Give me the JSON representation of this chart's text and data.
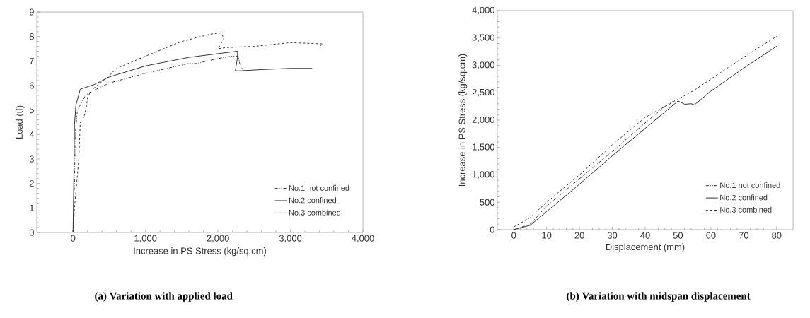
{
  "chart_data": [
    {
      "type": "line",
      "xlabel": "Increase in PS Stress (kg/sq.cm)",
      "ylabel": "Load (tf)",
      "xlim": [
        -500,
        4000
      ],
      "ylim": [
        0,
        9
      ],
      "xticks": [
        0,
        {
          "value": 1000,
          "label": "1,000"
        },
        {
          "value": 2000,
          "label": "2,000"
        },
        {
          "value": 3000,
          "label": "3,000"
        },
        {
          "value": 4000,
          "label": "4,000"
        }
      ],
      "yticks": [
        0,
        1,
        2,
        3,
        4,
        5,
        6,
        7,
        8,
        9
      ],
      "legend": "bottom right",
      "annotations": [
        "(a)  Variation with applied load"
      ],
      "series": [
        {
          "name": "No.1 not confined",
          "color": "#333333",
          "line_style": "dashdot",
          "x": [
            0,
            20,
            30,
            60,
            120,
            170,
            250,
            500,
            1000,
            1600,
            1700,
            2000,
            2200,
            2280,
            2300,
            2350
          ],
          "values": [
            0,
            2,
            4,
            5,
            5.3,
            5.6,
            5.75,
            6.1,
            6.5,
            6.9,
            6.9,
            7.1,
            7.2,
            7.2,
            6.9,
            6.6
          ]
        },
        {
          "name": "No.2 confined",
          "color": "#333333",
          "line_style": "solid",
          "x": [
            0,
            10,
            20,
            40,
            100,
            300,
            500,
            1000,
            1600,
            2000,
            2270,
            2270,
            2240,
            2300,
            2600,
            3000,
            3300
          ],
          "values": [
            0,
            2,
            4.4,
            5.2,
            5.85,
            6.05,
            6.35,
            6.8,
            7.15,
            7.3,
            7.4,
            7.15,
            6.6,
            6.6,
            6.65,
            6.7,
            6.7
          ]
        },
        {
          "name": "No.3 combined",
          "color": "#333333",
          "line_style": "dashed",
          "x": [
            0,
            20,
            50,
            80,
            100,
            150,
            190,
            200,
            250,
            500,
            600,
            1000,
            1500,
            1900,
            2050,
            2080,
            2000,
            2100,
            2500,
            3000,
            3450,
            3400
          ],
          "values": [
            0,
            1,
            2,
            3,
            4.5,
            4.7,
            5.2,
            5.5,
            5.8,
            6.4,
            6.7,
            7.2,
            7.8,
            8.1,
            8.15,
            7.9,
            7.5,
            7.55,
            7.6,
            7.75,
            7.7,
            7.6
          ]
        }
      ]
    },
    {
      "type": "line",
      "xlabel": "Displacement (mm)",
      "ylabel": "Increase in PS Stress (kg/sq.cm)",
      "xlim": [
        -5,
        85
      ],
      "ylim": [
        0,
        4000
      ],
      "xticks": [
        0,
        10,
        20,
        30,
        40,
        50,
        60,
        70,
        80
      ],
      "yticks": [
        0,
        500,
        {
          "value": 1000,
          "label": "1,000"
        },
        {
          "value": 1500,
          "label": "1,500"
        },
        {
          "value": 2000,
          "label": "2,000"
        },
        {
          "value": 2500,
          "label": "2,500"
        },
        {
          "value": 3000,
          "label": "3,000"
        },
        {
          "value": 3500,
          "label": "3,500"
        },
        {
          "value": 4000,
          "label": "4,000"
        }
      ],
      "legend": "bottom right",
      "annotations": [
        "(b) Variation with midspan displacement"
      ],
      "series": [
        {
          "name": "No.1 not confined",
          "color": "#333333",
          "line_style": "dashdot",
          "x": [
            0,
            5,
            10,
            20,
            30,
            40,
            47,
            50
          ],
          "values": [
            0,
            100,
            430,
            930,
            1430,
            1950,
            2300,
            2380
          ]
        },
        {
          "name": "No.2 confined",
          "color": "#333333",
          "line_style": "solid",
          "x": [
            0,
            5,
            10,
            20,
            30,
            40,
            50,
            51,
            52,
            54,
            55,
            60,
            70,
            80
          ],
          "values": [
            0,
            80,
            330,
            830,
            1350,
            1850,
            2350,
            2320,
            2290,
            2300,
            2280,
            2530,
            2950,
            3350
          ]
        },
        {
          "name": "No.3 combined",
          "color": "#333333",
          "line_style": "dashed",
          "x": [
            0,
            5,
            10,
            20,
            30,
            40,
            50,
            55,
            60,
            70,
            80
          ],
          "values": [
            50,
            220,
            500,
            1000,
            1550,
            2050,
            2380,
            2550,
            2750,
            3150,
            3530
          ]
        }
      ]
    }
  ]
}
